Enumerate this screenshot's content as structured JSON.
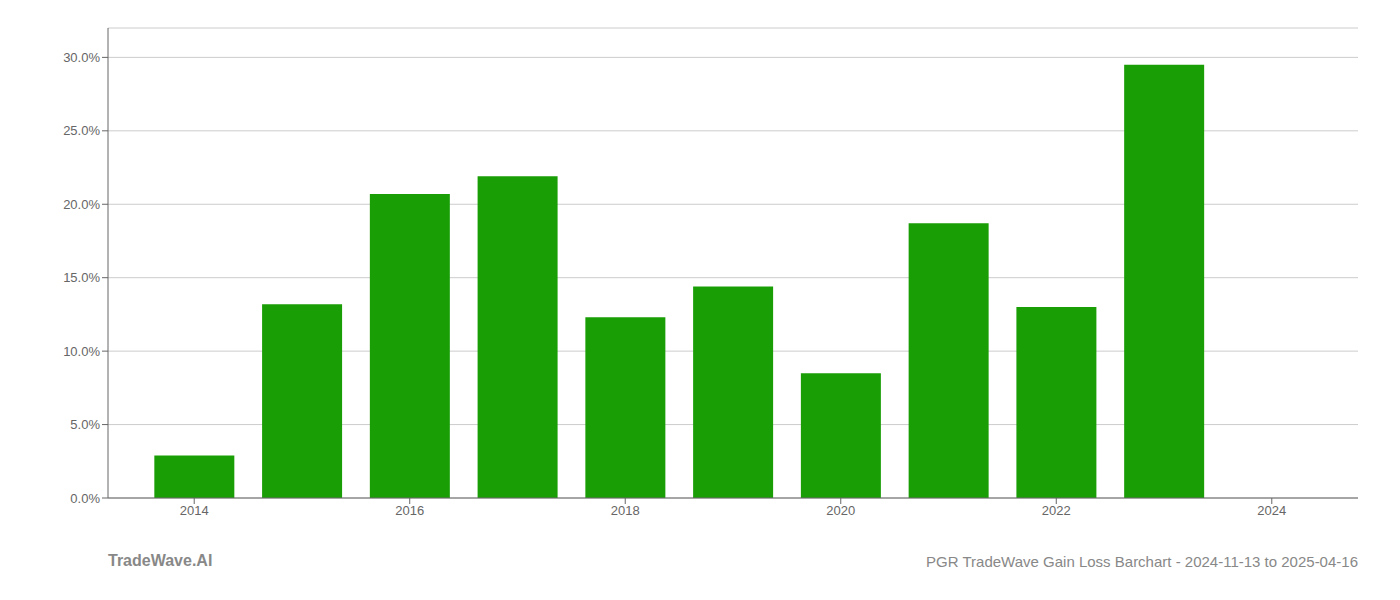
{
  "chart_data": {
    "type": "bar",
    "title": "PGR TradeWave Gain Loss Barchart - 2024-11-13 to 2025-04-16",
    "annotations": [
      "TradeWave.AI"
    ],
    "x": [
      2014,
      2015,
      2016,
      2017,
      2018,
      2019,
      2020,
      2021,
      2022,
      2023
    ],
    "values": [
      0.029,
      0.132,
      0.207,
      0.219,
      0.123,
      0.144,
      0.085,
      0.187,
      0.13,
      0.295
    ],
    "color": "#1a9e06",
    "xlim": [
      2013.2,
      2024.8
    ],
    "xticks": [
      2014,
      2016,
      2018,
      2020,
      2022,
      2024
    ],
    "ylim": [
      0.0,
      0.32
    ],
    "yticks": [
      {
        "value": 0.0,
        "label": "0.0%"
      },
      {
        "value": 0.05,
        "label": "5.0%"
      },
      {
        "value": 0.1,
        "label": "10.0%"
      },
      {
        "value": 0.15,
        "label": "15.0%"
      },
      {
        "value": 0.2,
        "label": "20.0%"
      },
      {
        "value": 0.25,
        "label": "25.0%"
      },
      {
        "value": 0.3,
        "label": "30.0%"
      }
    ],
    "grid": true
  }
}
